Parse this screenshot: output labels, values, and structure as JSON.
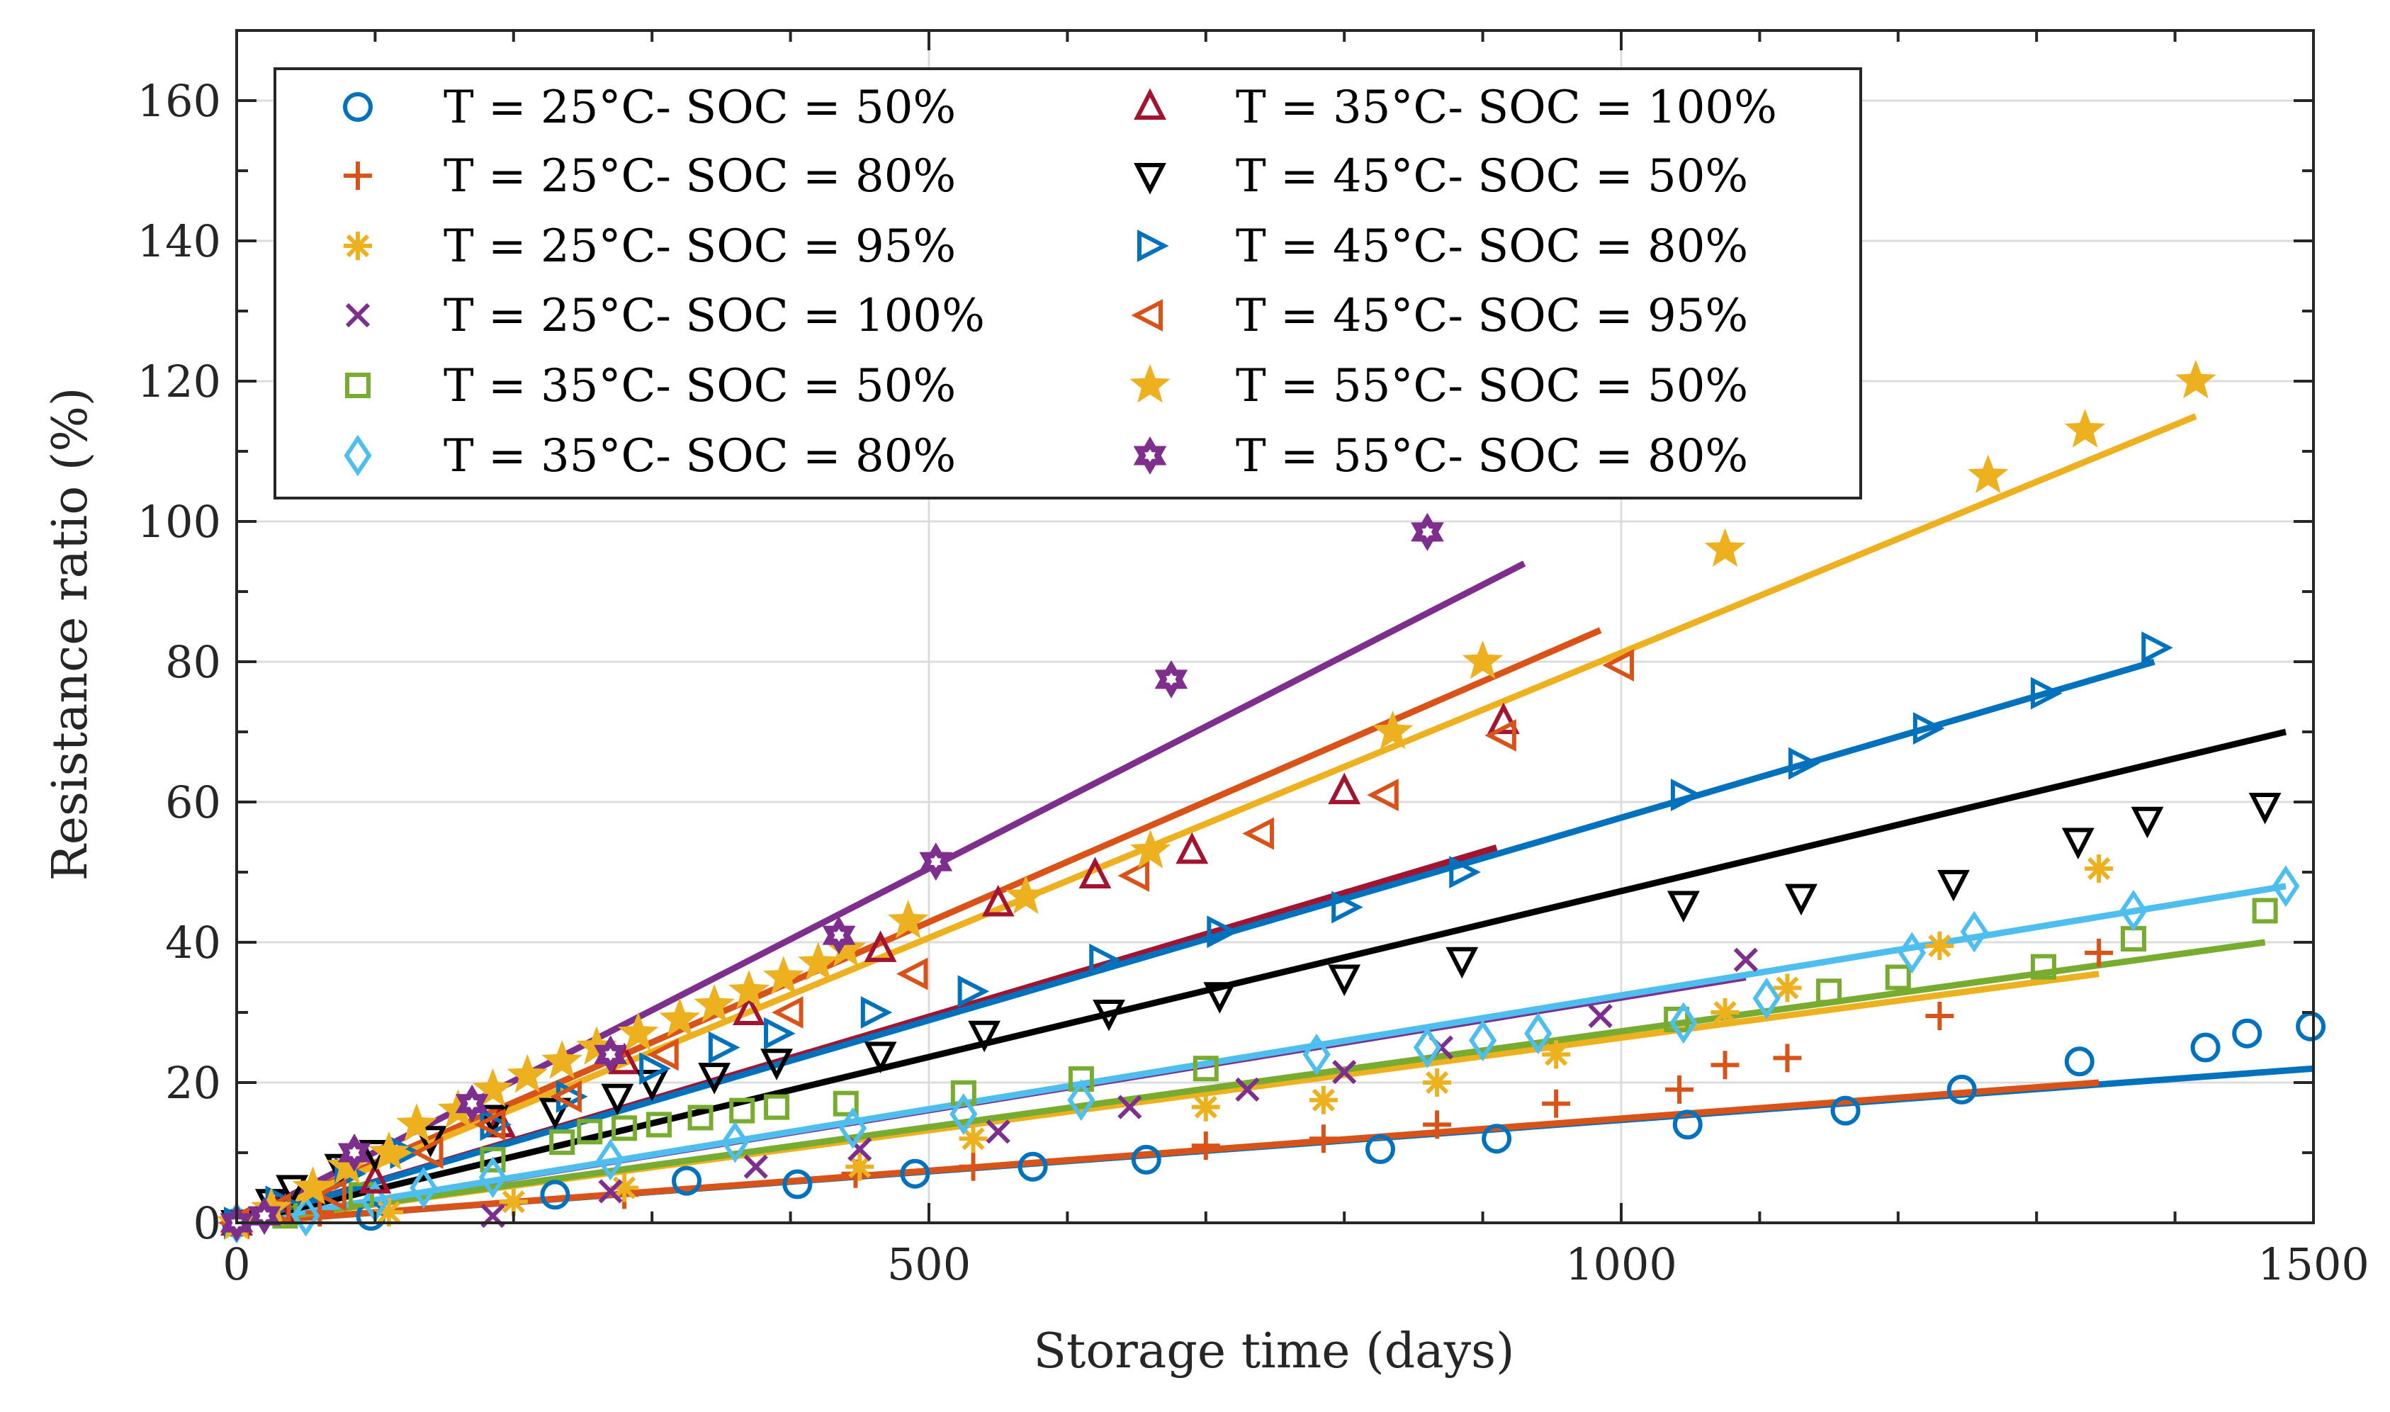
{
  "chart_data": {
    "type": "scatter",
    "title": "",
    "xlabel": "Storage time (days)",
    "ylabel": "Resistance ratio (%)",
    "xlim": [
      0,
      1500
    ],
    "ylim": [
      0,
      170
    ],
    "xticks": [
      0,
      500,
      1000,
      1500
    ],
    "yticks": [
      0,
      20,
      40,
      60,
      80,
      100,
      120,
      140,
      160
    ],
    "grid": true,
    "legend_position": "top-left",
    "series": [
      {
        "name": "T = 25°C- SOC = 50%",
        "marker": "circle",
        "color": "#0072BD",
        "points": [
          [
            0,
            0
          ],
          [
            97,
            1
          ],
          [
            230,
            4
          ],
          [
            325,
            6
          ],
          [
            405,
            5.5
          ],
          [
            490,
            7
          ],
          [
            575,
            8
          ],
          [
            657,
            9
          ],
          [
            826,
            10.5
          ],
          [
            910,
            12
          ],
          [
            1048,
            14
          ],
          [
            1162,
            16
          ],
          [
            1246,
            19
          ],
          [
            1331,
            23
          ],
          [
            1422,
            25
          ],
          [
            1452,
            27
          ],
          [
            1498,
            28
          ]
        ],
        "fit": [
          [
            0,
            0
          ],
          [
            1500,
            22
          ]
        ]
      },
      {
        "name": "T = 25°C- SOC = 80%",
        "marker": "plus",
        "color": "#D95319",
        "points": [
          [
            0,
            0
          ],
          [
            60,
            1.5
          ],
          [
            280,
            4
          ],
          [
            447,
            7
          ],
          [
            532,
            8
          ],
          [
            700,
            11
          ],
          [
            785,
            12
          ],
          [
            867,
            14
          ],
          [
            953,
            17
          ],
          [
            1042,
            19
          ],
          [
            1075,
            22.5
          ],
          [
            1120,
            23.5
          ],
          [
            1230,
            29.5
          ],
          [
            1345,
            38.5
          ]
        ],
        "fit": [
          [
            0,
            0
          ],
          [
            1345,
            20
          ]
        ]
      },
      {
        "name": "T = 25°C- SOC = 95%",
        "marker": "asterisk",
        "color": "#EDB120",
        "points": [
          [
            0,
            0
          ],
          [
            110,
            1.5
          ],
          [
            200,
            3
          ],
          [
            280,
            5
          ],
          [
            450,
            8
          ],
          [
            532,
            12
          ],
          [
            700,
            16.5
          ],
          [
            785,
            17.5
          ],
          [
            867,
            20
          ],
          [
            953,
            24
          ],
          [
            1075,
            30
          ],
          [
            1120,
            33.5
          ],
          [
            1230,
            39.5
          ],
          [
            1345,
            50.5
          ]
        ],
        "fit": [
          [
            0,
            0
          ],
          [
            1345,
            35.5
          ]
        ]
      },
      {
        "name": "T = 25°C- SOC = 100%",
        "marker": "x",
        "color": "#7E2F8E",
        "points": [
          [
            0,
            0
          ],
          [
            185,
            1
          ],
          [
            270,
            4.5
          ],
          [
            375,
            8
          ],
          [
            450,
            10.5
          ],
          [
            550,
            13
          ],
          [
            645,
            16.5
          ],
          [
            730,
            19
          ],
          [
            800,
            21.5
          ],
          [
            870,
            25
          ],
          [
            985,
            29.5
          ],
          [
            1090,
            37.5
          ]
        ],
        "fit": [
          [
            0,
            0
          ],
          [
            1090,
            35
          ]
        ]
      },
      {
        "name": "T = 35°C- SOC = 50%",
        "marker": "square",
        "color": "#77AC30",
        "points": [
          [
            0,
            0
          ],
          [
            35,
            1
          ],
          [
            90,
            4
          ],
          [
            185,
            9
          ],
          [
            235,
            11.5
          ],
          [
            255,
            13
          ],
          [
            280,
            13.5
          ],
          [
            305,
            14
          ],
          [
            335,
            15
          ],
          [
            365,
            16
          ],
          [
            390,
            16.5
          ],
          [
            440,
            17
          ],
          [
            525,
            18.5
          ],
          [
            610,
            20.5
          ],
          [
            700,
            22
          ],
          [
            1040,
            29
          ],
          [
            1150,
            33
          ],
          [
            1200,
            35
          ],
          [
            1305,
            36.5
          ],
          [
            1370,
            40.5
          ],
          [
            1465,
            44.5
          ]
        ],
        "fit": [
          [
            0,
            0
          ],
          [
            1465,
            40
          ]
        ]
      },
      {
        "name": "T = 35°C- SOC = 80%",
        "marker": "diamond",
        "color": "#4DBEEE",
        "points": [
          [
            0,
            0
          ],
          [
            50,
            1
          ],
          [
            100,
            3
          ],
          [
            135,
            5
          ],
          [
            185,
            6.5
          ],
          [
            270,
            9
          ],
          [
            360,
            11.5
          ],
          [
            445,
            13.5
          ],
          [
            525,
            15.5
          ],
          [
            610,
            17.5
          ],
          [
            780,
            24
          ],
          [
            860,
            25
          ],
          [
            900,
            26
          ],
          [
            940,
            27
          ],
          [
            1045,
            28.5
          ],
          [
            1105,
            32
          ],
          [
            1210,
            38.5
          ],
          [
            1255,
            41.5
          ],
          [
            1370,
            44.5
          ],
          [
            1480,
            48
          ]
        ],
        "fit": [
          [
            0,
            0
          ],
          [
            1480,
            48
          ]
        ]
      },
      {
        "name": "T = 35°C- SOC = 100%",
        "marker": "triangle-up",
        "color": "#A2142F",
        "points": [
          [
            0,
            0
          ],
          [
            30,
            2
          ],
          [
            100,
            6
          ],
          [
            190,
            14
          ],
          [
            280,
            23
          ],
          [
            370,
            30
          ],
          [
            465,
            39
          ],
          [
            550,
            45.5
          ],
          [
            620,
            49.5
          ],
          [
            690,
            53
          ],
          [
            800,
            61.5
          ],
          [
            915,
            71.5
          ]
        ],
        "fit": [
          [
            0,
            0
          ],
          [
            910,
            53.5
          ]
        ]
      },
      {
        "name": "T = 45°C- SOC = 50%",
        "marker": "triangle-down",
        "color": "#000000",
        "points": [
          [
            0,
            0
          ],
          [
            25,
            3
          ],
          [
            40,
            5
          ],
          [
            75,
            8
          ],
          [
            100,
            10
          ],
          [
            140,
            12
          ],
          [
            185,
            15
          ],
          [
            230,
            16
          ],
          [
            275,
            18
          ],
          [
            300,
            20
          ],
          [
            345,
            21
          ],
          [
            390,
            23
          ],
          [
            465,
            24
          ],
          [
            540,
            27
          ],
          [
            630,
            30
          ],
          [
            710,
            32.5
          ],
          [
            800,
            35
          ],
          [
            885,
            37.5
          ],
          [
            1045,
            45.5
          ],
          [
            1130,
            46.5
          ],
          [
            1240,
            48.5
          ],
          [
            1330,
            54.5
          ],
          [
            1380,
            57.5
          ],
          [
            1465,
            59.5
          ]
        ],
        "fit": [
          [
            0,
            0
          ],
          [
            1480,
            70
          ]
        ]
      },
      {
        "name": "T = 45°C- SOC = 80%",
        "marker": "triangle-right",
        "color": "#0072BD",
        "points": [
          [
            0,
            0
          ],
          [
            30,
            3
          ],
          [
            80,
            7
          ],
          [
            120,
            10
          ],
          [
            185,
            14
          ],
          [
            240,
            18
          ],
          [
            300,
            22
          ],
          [
            350,
            25
          ],
          [
            390,
            27
          ],
          [
            460,
            30
          ],
          [
            530,
            33
          ],
          [
            625,
            37.5
          ],
          [
            710,
            41.5
          ],
          [
            800,
            45
          ],
          [
            885,
            50
          ],
          [
            1045,
            61
          ],
          [
            1130,
            65.5
          ],
          [
            1220,
            70.5
          ],
          [
            1305,
            75.5
          ],
          [
            1385,
            82
          ]
        ],
        "fit": [
          [
            0,
            0
          ],
          [
            1385,
            80
          ]
        ]
      },
      {
        "name": "T = 45°C- SOC = 95%",
        "marker": "triangle-left",
        "color": "#D95319",
        "points": [
          [
            0,
            0
          ],
          [
            30,
            2
          ],
          [
            70,
            4
          ],
          [
            140,
            10
          ],
          [
            185,
            14
          ],
          [
            240,
            18
          ],
          [
            310,
            24
          ],
          [
            400,
            30
          ],
          [
            490,
            35.5
          ],
          [
            650,
            49.5
          ],
          [
            740,
            55.5
          ],
          [
            830,
            61
          ],
          [
            915,
            69.5
          ],
          [
            1000,
            79.5
          ]
        ],
        "fit": [
          [
            0,
            0
          ],
          [
            985,
            84.5
          ]
        ]
      },
      {
        "name": "T = 55°C- SOC = 50%",
        "marker": "star",
        "color": "#EDB120",
        "points": [
          [
            0,
            0
          ],
          [
            25,
            2
          ],
          [
            55,
            5
          ],
          [
            80,
            8
          ],
          [
            110,
            10
          ],
          [
            130,
            14
          ],
          [
            160,
            16
          ],
          [
            185,
            19
          ],
          [
            210,
            21
          ],
          [
            235,
            23
          ],
          [
            260,
            25
          ],
          [
            290,
            27
          ],
          [
            320,
            29
          ],
          [
            345,
            31
          ],
          [
            370,
            33
          ],
          [
            395,
            35
          ],
          [
            420,
            37
          ],
          [
            440,
            39
          ],
          [
            485,
            43
          ],
          [
            570,
            46.5
          ],
          [
            660,
            53
          ],
          [
            835,
            70
          ],
          [
            900,
            80
          ],
          [
            1075,
            96
          ],
          [
            1265,
            106.5
          ],
          [
            1335,
            113
          ],
          [
            1415,
            120
          ]
        ],
        "fit": [
          [
            0,
            0
          ],
          [
            1415,
            115
          ]
        ]
      },
      {
        "name": "T = 55°C- SOC = 80%",
        "marker": "hexagram",
        "color": "#7E2F8E",
        "points": [
          [
            0,
            0
          ],
          [
            20,
            1
          ],
          [
            85,
            10
          ],
          [
            170,
            17
          ],
          [
            270,
            24
          ],
          [
            435,
            41
          ],
          [
            505,
            51.5
          ],
          [
            675,
            77.5
          ],
          [
            860,
            98.5
          ]
        ],
        "fit": [
          [
            0,
            0
          ],
          [
            930,
            94
          ]
        ]
      }
    ]
  }
}
